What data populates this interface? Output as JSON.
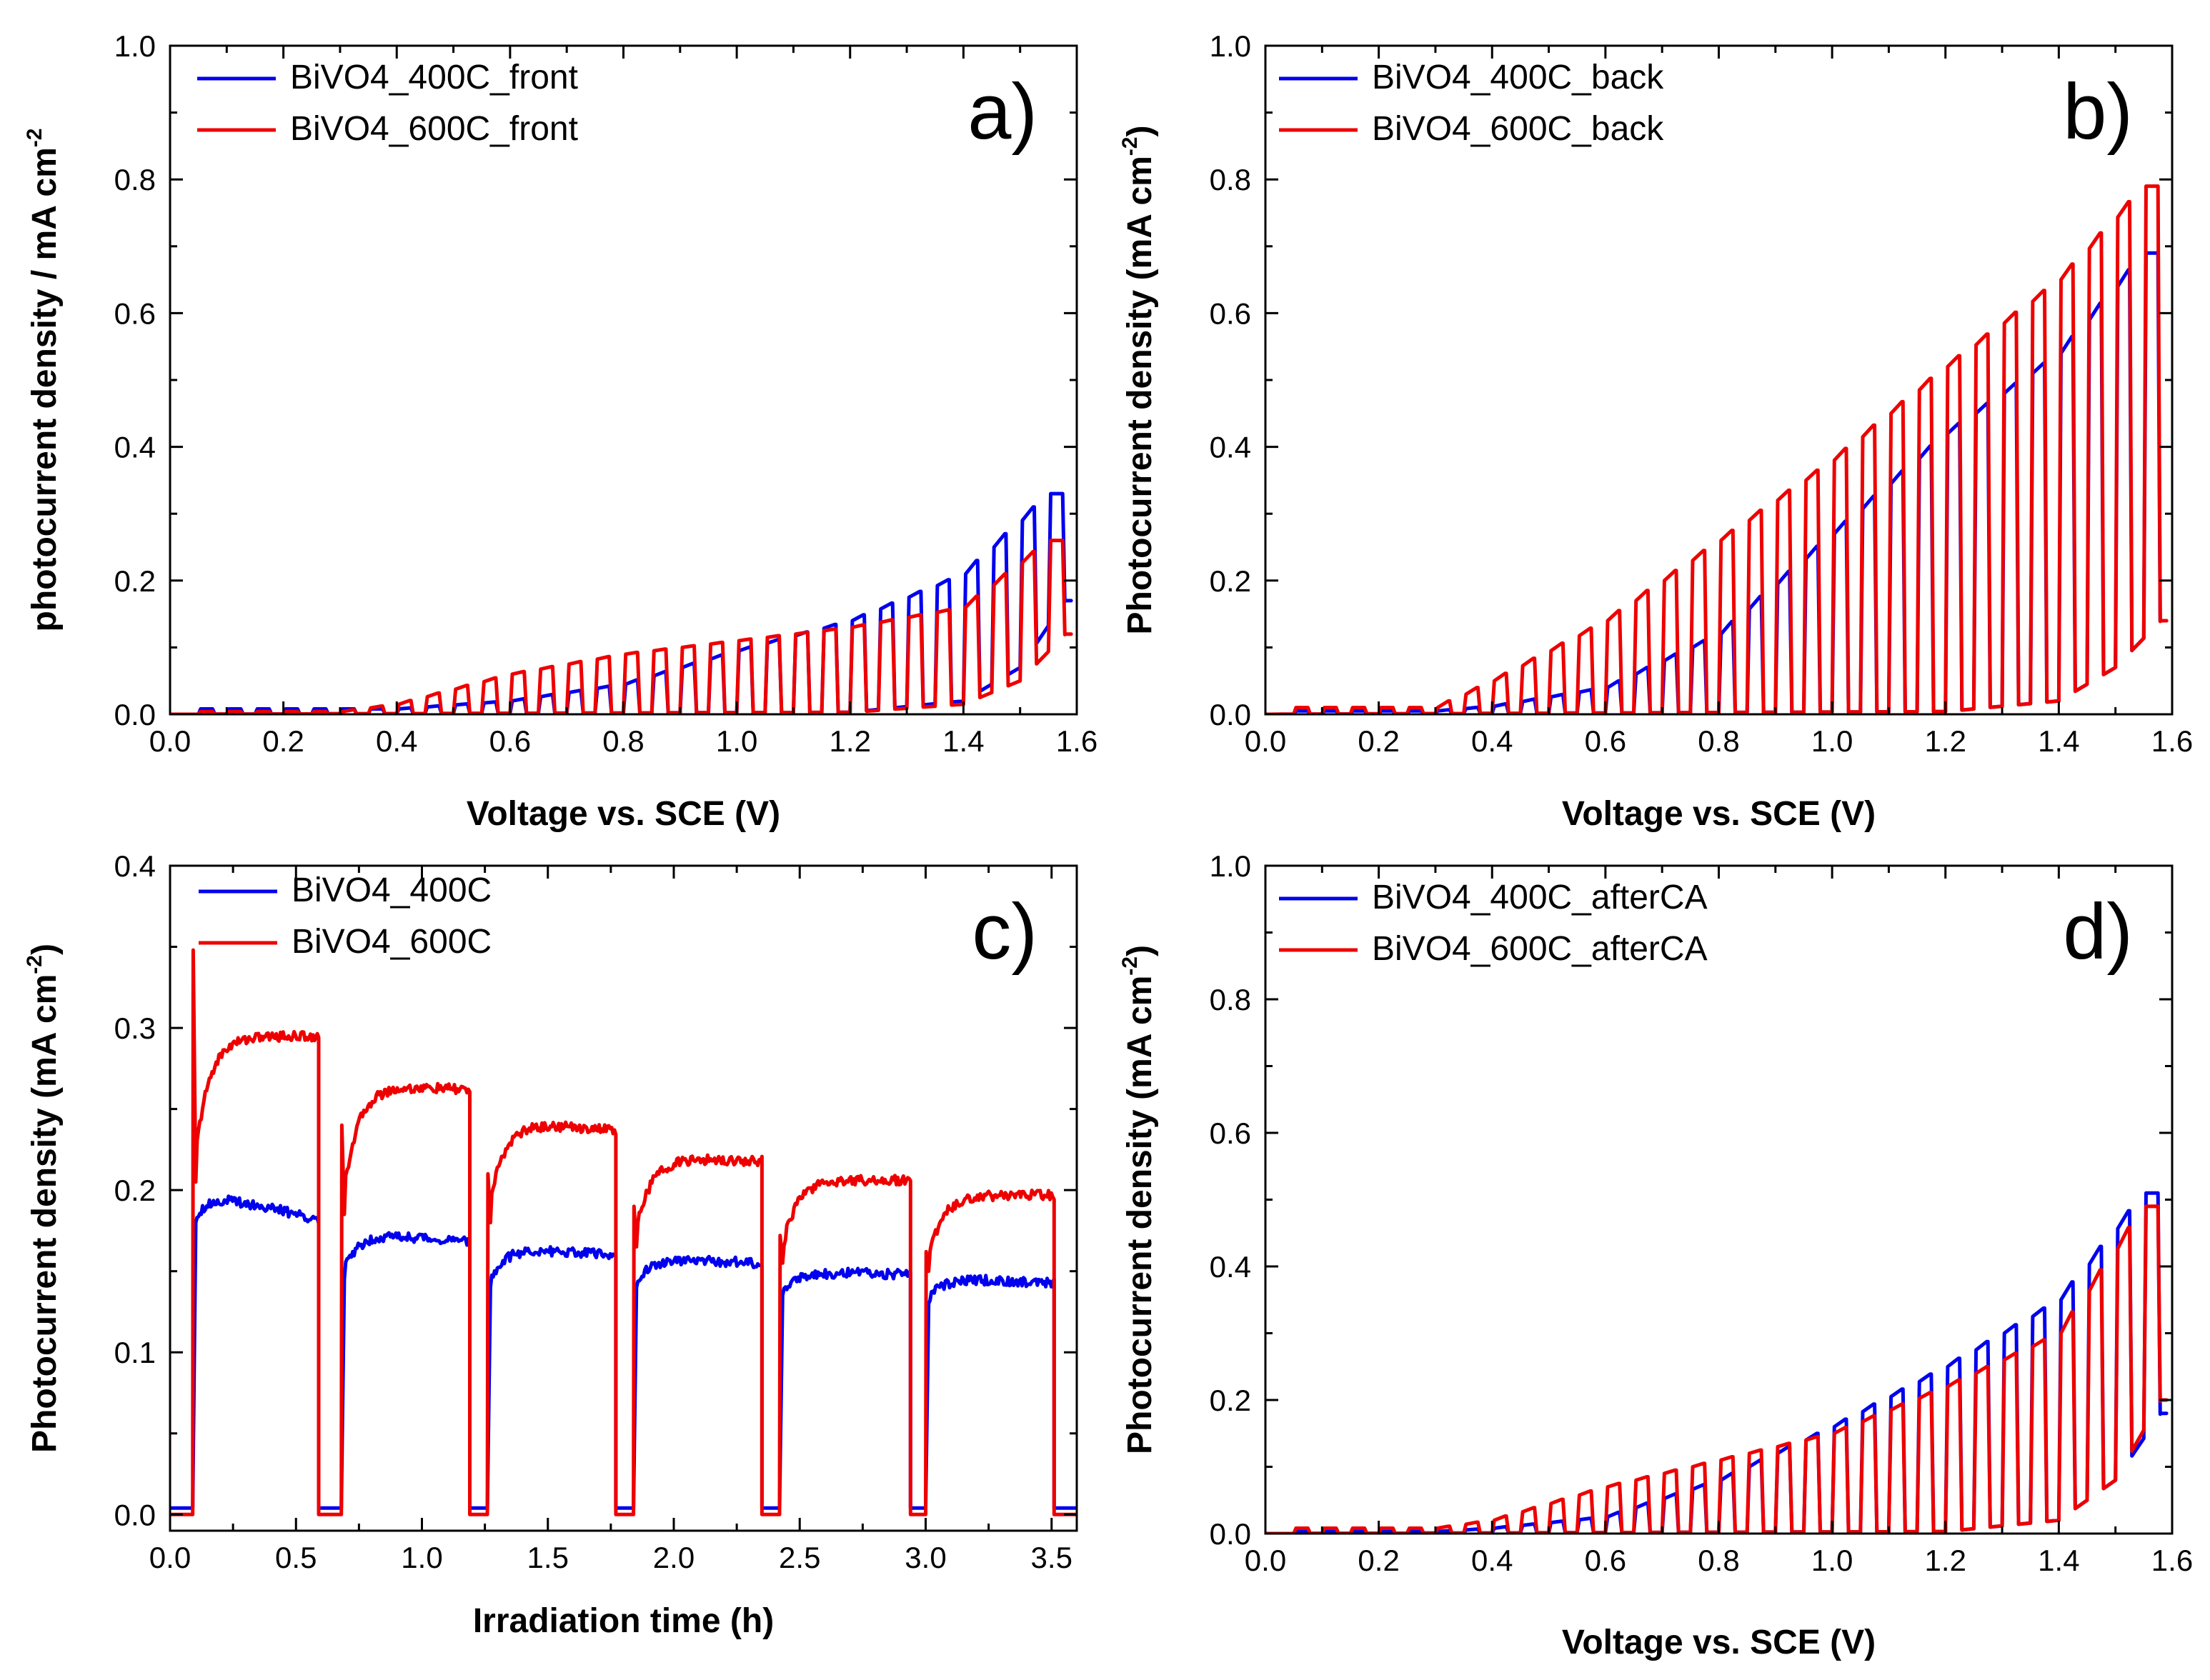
{
  "chart_data": [
    {
      "panel": "a",
      "type": "line",
      "panel_label": "a)",
      "xlabel": "Voltage vs. SCE (V)",
      "ylabel": "photocurrent density / mA cm",
      "ylabel_sup": "-2",
      "xlim": [
        0,
        1.6
      ],
      "ylim": [
        0,
        1.0
      ],
      "xticks": [
        0.0,
        0.2,
        0.4,
        0.6,
        0.8,
        1.0,
        1.2,
        1.4,
        1.6
      ],
      "yticks": [
        0.0,
        0.2,
        0.4,
        0.6,
        0.8,
        1.0
      ],
      "xtick_labels": [
        "0.0",
        "0.2",
        "0.4",
        "0.6",
        "0.8",
        "1.0",
        "1.2",
        "1.4",
        "1.6"
      ],
      "ytick_labels": [
        "0.0",
        "0.2",
        "0.4",
        "0.6",
        "0.8",
        "1.0"
      ],
      "legend_position": "top-left",
      "series": [
        {
          "name": "BiVO4_400C_front",
          "color": "#0000ee",
          "mode": "chopped",
          "period": 0.05,
          "on_start": 0.05,
          "v_end": 1.58,
          "light_x": [
            0.4,
            0.6,
            0.8,
            1.0,
            1.2,
            1.4,
            1.55
          ],
          "light_y": [
            0.008,
            0.02,
            0.045,
            0.095,
            0.14,
            0.21,
            0.33
          ],
          "dark_x": [
            0.0,
            1.2,
            1.4,
            1.5,
            1.58
          ],
          "dark_y": [
            0.0,
            0.003,
            0.02,
            0.07,
            0.17
          ]
        },
        {
          "name": "BiVO4_600C_front",
          "color": "#ee0000",
          "mode": "chopped",
          "period": 0.05,
          "on_start": 0.05,
          "v_end": 1.58,
          "light_x": [
            0.3,
            0.4,
            0.6,
            0.8,
            1.0,
            1.2,
            1.4,
            1.55
          ],
          "light_y": [
            0.004,
            0.015,
            0.06,
            0.09,
            0.11,
            0.13,
            0.16,
            0.26
          ],
          "dark_x": [
            0.0,
            1.2,
            1.4,
            1.5,
            1.58
          ],
          "dark_y": [
            0.0,
            0.003,
            0.015,
            0.05,
            0.12
          ]
        }
      ]
    },
    {
      "panel": "b",
      "type": "line",
      "panel_label": "b)",
      "xlabel": "Voltage vs. SCE (V)",
      "ylabel": "Photocurrent density  (mA cm",
      "ylabel_sup": "-2",
      "ylabel_close": ")",
      "xlim": [
        0,
        1.6
      ],
      "ylim": [
        0,
        1.0
      ],
      "xticks": [
        0.0,
        0.2,
        0.4,
        0.6,
        0.8,
        1.0,
        1.2,
        1.4,
        1.6
      ],
      "yticks": [
        0.0,
        0.2,
        0.4,
        0.6,
        0.8,
        1.0
      ],
      "xtick_labels": [
        "0.0",
        "0.2",
        "0.4",
        "0.6",
        "0.8",
        "1.0",
        "1.2",
        "1.4",
        "1.6"
      ],
      "ytick_labels": [
        "0.0",
        "0.2",
        "0.4",
        "0.6",
        "0.8",
        "1.0"
      ],
      "legend_position": "top-left",
      "series": [
        {
          "name": "BiVO4_400C_back",
          "color": "#0000ee",
          "mode": "chopped",
          "period": 0.05,
          "on_start": 0.05,
          "v_end": 1.58,
          "light_x": [
            0.3,
            0.4,
            0.6,
            0.8,
            1.0,
            1.2,
            1.4,
            1.55
          ],
          "light_y": [
            0.005,
            0.012,
            0.04,
            0.12,
            0.27,
            0.42,
            0.54,
            0.69
          ],
          "dark_x": [
            0.0,
            1.2,
            1.4,
            1.5,
            1.58
          ],
          "dark_y": [
            0.0,
            0.004,
            0.02,
            0.07,
            0.14
          ]
        },
        {
          "name": "BiVO4_600C_back",
          "color": "#ee0000",
          "mode": "chopped",
          "period": 0.05,
          "on_start": 0.05,
          "v_end": 1.58,
          "light_x": [
            0.3,
            0.4,
            0.6,
            0.8,
            1.0,
            1.2,
            1.4,
            1.55
          ],
          "light_y": [
            0.01,
            0.05,
            0.14,
            0.26,
            0.38,
            0.52,
            0.65,
            0.79
          ],
          "dark_x": [
            0.0,
            1.2,
            1.4,
            1.5,
            1.58
          ],
          "dark_y": [
            0.0,
            0.004,
            0.02,
            0.07,
            0.14
          ]
        }
      ]
    },
    {
      "panel": "c",
      "type": "line",
      "panel_label": "c)",
      "xlabel": "Irradiation time (h)",
      "ylabel": "Photocurrent density (mA cm",
      "ylabel_sup": "-2",
      "ylabel_close": ")",
      "xlim": [
        0,
        3.6
      ],
      "ylim": [
        -0.01,
        0.4
      ],
      "xticks": [
        0.0,
        0.5,
        1.0,
        1.5,
        2.0,
        2.5,
        3.0,
        3.5
      ],
      "yticks": [
        0.0,
        0.1,
        0.2,
        0.3,
        0.4
      ],
      "xtick_labels": [
        "0.0",
        "0.5",
        "1.0",
        "1.5",
        "2.0",
        "2.5",
        "3.0",
        "3.5"
      ],
      "ytick_labels": [
        "0.0",
        "0.1",
        "0.2",
        "0.3",
        "0.4"
      ],
      "legend_position": "top-left",
      "series": [
        {
          "name": "BiVO4_400C",
          "color": "#0000ee",
          "mode": "ca",
          "dark": 0.004,
          "end": 3.6,
          "pulses": [
            {
              "on": 0.09,
              "off": 0.59,
              "y0": 0.18,
              "peak": 0.2,
              "end": 0.182,
              "spike": 0.0
            },
            {
              "on": 0.68,
              "off": 1.19,
              "y0": 0.145,
              "peak": 0.175,
              "end": 0.168,
              "spike": 0.0
            },
            {
              "on": 1.26,
              "off": 1.77,
              "y0": 0.14,
              "peak": 0.165,
              "end": 0.16,
              "spike": 0.0
            },
            {
              "on": 1.84,
              "off": 2.35,
              "y0": 0.14,
              "peak": 0.158,
              "end": 0.155,
              "spike": 0.0
            },
            {
              "on": 2.42,
              "off": 2.94,
              "y0": 0.135,
              "peak": 0.15,
              "end": 0.148,
              "spike": 0.0
            },
            {
              "on": 3.0,
              "off": 3.51,
              "y0": 0.13,
              "peak": 0.146,
              "end": 0.143,
              "spike": 0.0
            }
          ]
        },
        {
          "name": "BiVO4_600C",
          "color": "#ee0000",
          "mode": "ca",
          "dark": 0.0,
          "end": 3.6,
          "pulses": [
            {
              "on": 0.09,
              "off": 0.59,
              "y0": 0.205,
              "peak": 0.295,
              "end": 0.295,
              "spike": 0.348
            },
            {
              "on": 0.68,
              "off": 1.19,
              "y0": 0.185,
              "peak": 0.265,
              "end": 0.262,
              "spike": 0.24
            },
            {
              "on": 1.26,
              "off": 1.77,
              "y0": 0.18,
              "peak": 0.243,
              "end": 0.237,
              "spike": 0.21
            },
            {
              "on": 1.84,
              "off": 2.35,
              "y0": 0.165,
              "peak": 0.22,
              "end": 0.218,
              "spike": 0.19
            },
            {
              "on": 2.42,
              "off": 2.94,
              "y0": 0.155,
              "peak": 0.207,
              "end": 0.206,
              "spike": 0.172
            },
            {
              "on": 3.0,
              "off": 3.51,
              "y0": 0.15,
              "peak": 0.197,
              "end": 0.197,
              "spike": 0.162
            }
          ]
        }
      ]
    },
    {
      "panel": "d",
      "type": "line",
      "panel_label": "d)",
      "xlabel": "Voltage vs. SCE (V)",
      "ylabel": "Photocurrent density (mA cm",
      "ylabel_sup": "-2",
      "ylabel_close": ")",
      "xlim": [
        0,
        1.6
      ],
      "ylim": [
        0,
        1.0
      ],
      "xticks": [
        0.0,
        0.2,
        0.4,
        0.6,
        0.8,
        1.0,
        1.2,
        1.4,
        1.6
      ],
      "yticks": [
        0.0,
        0.2,
        0.4,
        0.6,
        0.8,
        1.0
      ],
      "xtick_labels": [
        "0.0",
        "0.2",
        "0.4",
        "0.6",
        "0.8",
        "1.0",
        "1.2",
        "1.4",
        "1.6"
      ],
      "ytick_labels": [
        "0.0",
        "0.2",
        "0.4",
        "0.6",
        "0.8",
        "1.0"
      ],
      "legend_position": "top-left",
      "series": [
        {
          "name": "BiVO4_400C_afterCA",
          "color": "#0000ee",
          "mode": "chopped",
          "period": 0.05,
          "on_start": 0.05,
          "v_end": 1.58,
          "light_x": [
            0.3,
            0.4,
            0.6,
            0.8,
            1.0,
            1.2,
            1.4,
            1.55
          ],
          "light_y": [
            0.003,
            0.008,
            0.025,
            0.08,
            0.16,
            0.25,
            0.35,
            0.51
          ],
          "dark_x": [
            0.0,
            1.2,
            1.4,
            1.5,
            1.58
          ],
          "dark_y": [
            0.0,
            0.003,
            0.02,
            0.08,
            0.18
          ]
        },
        {
          "name": "BiVO4_600C_afterCA",
          "color": "#ee0000",
          "mode": "chopped",
          "period": 0.05,
          "on_start": 0.05,
          "v_end": 1.58,
          "light_x": [
            0.3,
            0.4,
            0.6,
            0.8,
            1.0,
            1.2,
            1.4,
            1.55
          ],
          "light_y": [
            0.008,
            0.02,
            0.07,
            0.11,
            0.15,
            0.22,
            0.3,
            0.49
          ],
          "dark_x": [
            0.0,
            1.2,
            1.4,
            1.5,
            1.58
          ],
          "dark_y": [
            0.0,
            0.003,
            0.02,
            0.08,
            0.2
          ]
        }
      ]
    }
  ]
}
